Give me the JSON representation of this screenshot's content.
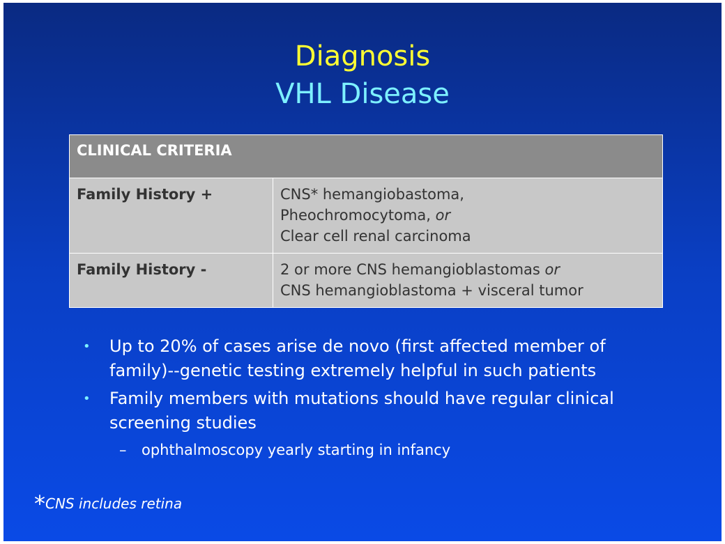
{
  "title": {
    "line1": "Diagnosis",
    "line2": "VHL Disease"
  },
  "table": {
    "header": "CLINICAL CRITERIA",
    "rows": [
      {
        "label": "Family History +",
        "lines": [
          "CNS* hemangiobastoma,",
          "Pheochromocytoma, ",
          "Clear cell renal carcinoma"
        ],
        "connector": "or"
      },
      {
        "label": "Family History -",
        "lines": [
          "2 or more CNS hemangioblastomas ",
          "CNS hemangioblastoma + visceral tumor"
        ],
        "connector": "or"
      }
    ]
  },
  "bullets": [
    "Up to 20% of cases arise de novo (first affected member of family)--genetic testing extremely helpful in such patients",
    "Family members with mutations should have regular clinical screening studies"
  ],
  "sub_bullet": {
    "dash": "–",
    "text": "ophthalmoscopy yearly starting in infancy"
  },
  "bullet_symbol": "•",
  "footnote": {
    "star": "*",
    "text": "CNS includes retina"
  }
}
